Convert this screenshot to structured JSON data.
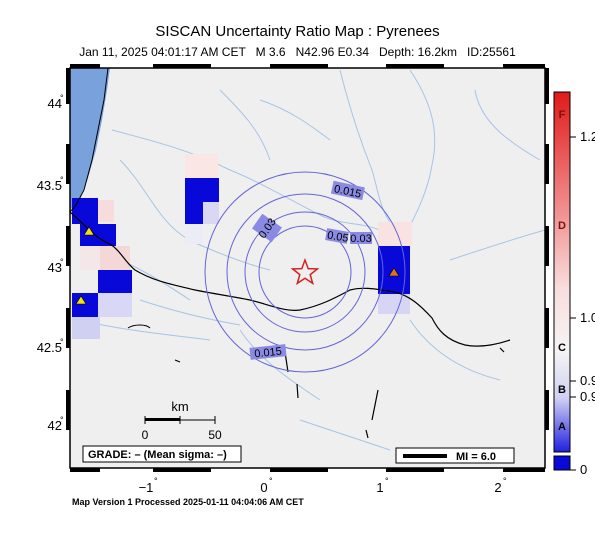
{
  "title": "SISCAN Uncertainty Ratio Map : Pyrenees",
  "subtitle": "Jan 11, 2025 04:01:17 AM CET   M 3.6   N42.96 E0.34   Depth: 16.2km   ID:25561",
  "footer": "Map Version 1 Processed 2025-01-11 04:04:06 AM CET",
  "lat_ticks": [
    "44",
    "43.5",
    "43",
    "42.5",
    "42"
  ],
  "lon_ticks": [
    "−1",
    "0",
    "1",
    "2"
  ],
  "contour_labels": [
    "0.015",
    "0.03",
    "0.05",
    "0.03",
    "0.015"
  ],
  "scale_bar": {
    "unit": "km",
    "start": "0",
    "end": "50"
  },
  "grade_text": "GRADE: – (Mean sigma: –)",
  "mi_legend": "MI = 6.0",
  "colorbar": {
    "letters": [
      "F",
      "D",
      "C",
      "B",
      "A"
    ],
    "values": [
      "1.2",
      "1.0",
      "0.9",
      "0.9",
      "0"
    ],
    "colors": {
      "top": "#e21a1a",
      "mid": "#f4f4f4",
      "bottom": "#0a0ad8"
    }
  },
  "epicenter": {
    "symbol": "star",
    "color": "#d42020"
  },
  "stations": [
    {
      "symbol": "triangle",
      "color": "#f2e010"
    },
    {
      "symbol": "triangle",
      "color": "#f2e010"
    },
    {
      "symbol": "triangle",
      "color": "#e07020"
    }
  ],
  "colors": {
    "land": "#efefef",
    "sea": "#79a1dc",
    "rivers": "#a7c4e6",
    "contours": "#6464d8"
  }
}
